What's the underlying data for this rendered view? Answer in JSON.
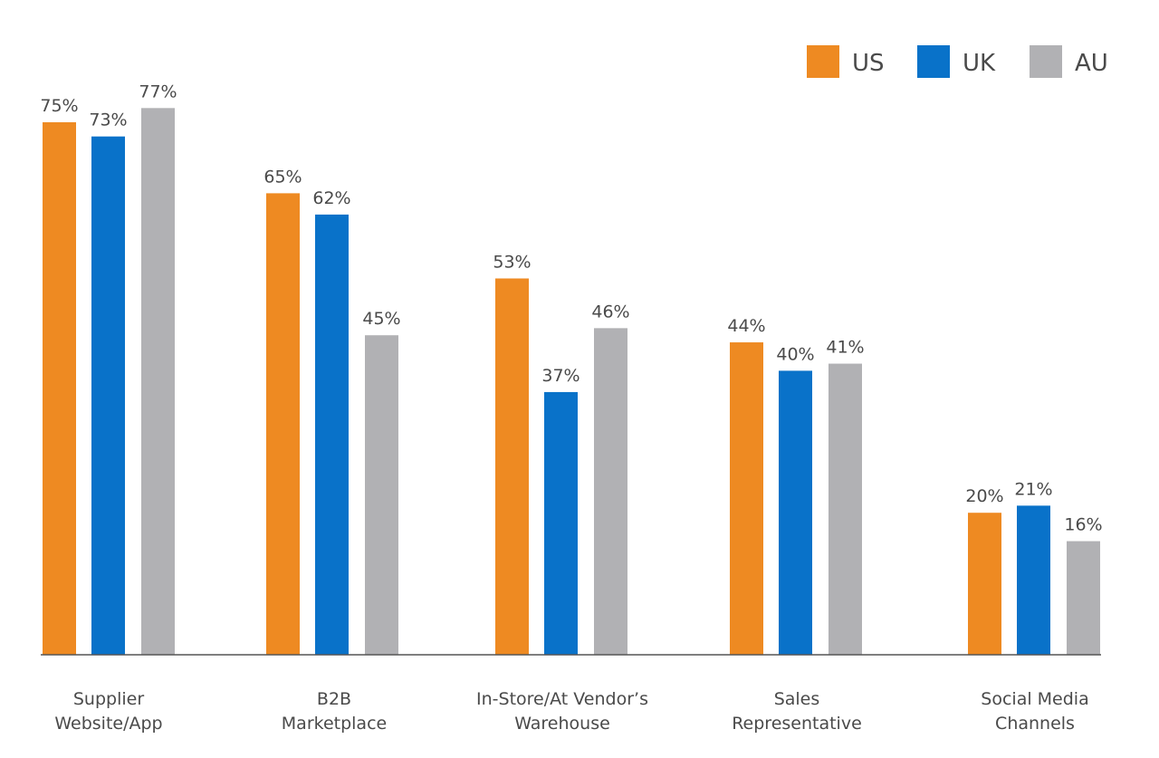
{
  "chart_data": {
    "type": "bar",
    "title": "",
    "xlabel": "",
    "ylabel": "",
    "ylim": [
      0,
      100
    ],
    "grid": false,
    "legend_position": "top-right",
    "categories": [
      [
        "Supplier",
        "Website/App"
      ],
      [
        "B2B",
        "Marketplace"
      ],
      [
        "In-Store/At Vendor’s",
        "Warehouse"
      ],
      [
        "Sales",
        "Representative"
      ],
      [
        "Social Media",
        "Channels"
      ]
    ],
    "series": [
      {
        "name": "US",
        "color": "#EE8A22",
        "values": [
          75,
          65,
          53,
          44,
          20
        ]
      },
      {
        "name": "UK",
        "color": "#0972C9",
        "values": [
          73,
          62,
          37,
          40,
          21
        ]
      },
      {
        "name": "AU",
        "color": "#B1B1B4",
        "values": [
          77,
          45,
          46,
          41,
          16
        ]
      }
    ],
    "value_suffix": "%"
  }
}
